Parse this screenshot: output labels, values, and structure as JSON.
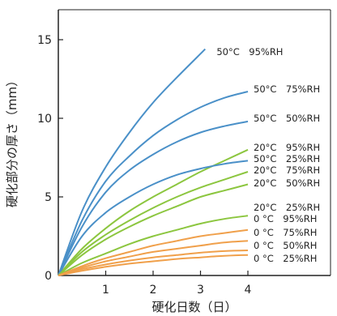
{
  "chart_data": {
    "type": "line",
    "xlabel": "硬化日数（日）",
    "ylabel": "硬化部分の厚さ（mm）",
    "xlim": [
      0,
      5.15
    ],
    "ylim": [
      0,
      17
    ],
    "x_ticks": [
      1,
      2,
      3,
      4
    ],
    "y_ticks": [
      0,
      5,
      10,
      15
    ],
    "x_tick_labels": [
      "1",
      "2",
      "3",
      "4"
    ],
    "y_tick_labels": [
      "0",
      "5",
      "10",
      "15"
    ],
    "grid": false,
    "colors": {
      "blue": "#4a90c8",
      "green": "#8cc63f",
      "orange": "#f0a04b"
    },
    "series": [
      {
        "name": "50°C　95%RH",
        "color": "blue",
        "x": [
          0,
          0.5,
          1,
          1.5,
          2,
          2.5,
          3.1
        ],
        "y": [
          0,
          4.1,
          6.9,
          9.1,
          11.0,
          12.6,
          14.4
        ]
      },
      {
        "name": "50°C　75%RH",
        "color": "blue",
        "x": [
          0,
          0.5,
          1,
          1.5,
          2,
          2.5,
          3,
          3.5,
          4
        ],
        "y": [
          0,
          3.5,
          6.0,
          7.6,
          8.9,
          9.9,
          10.7,
          11.3,
          11.7
        ]
      },
      {
        "name": "50°C　50%RH",
        "color": "blue",
        "x": [
          0,
          0.5,
          1,
          1.5,
          2,
          2.5,
          3,
          3.5,
          4
        ],
        "y": [
          0,
          3.1,
          5.3,
          6.7,
          7.7,
          8.5,
          9.1,
          9.5,
          9.8
        ]
      },
      {
        "name": "20°C　95%RH",
        "color": "green",
        "x": [
          0,
          0.5,
          1,
          1.5,
          2,
          2.5,
          3,
          3.5,
          4
        ],
        "y": [
          0,
          1.7,
          3.0,
          4.1,
          5.0,
          5.8,
          6.6,
          7.3,
          8.0
        ]
      },
      {
        "name": "50°C　25%RH",
        "color": "blue",
        "x": [
          0,
          0.5,
          1,
          1.5,
          2,
          2.5,
          3,
          3.5,
          4
        ],
        "y": [
          0,
          2.5,
          4.0,
          5.0,
          5.8,
          6.4,
          6.8,
          7.1,
          7.3
        ]
      },
      {
        "name": "20°C　75%RH",
        "color": "green",
        "x": [
          0,
          0.5,
          1,
          1.5,
          2,
          2.5,
          3,
          3.5,
          4
        ],
        "y": [
          0,
          1.5,
          2.6,
          3.5,
          4.3,
          5.0,
          5.6,
          6.1,
          6.6
        ]
      },
      {
        "name": "20°C　50%RH",
        "color": "green",
        "x": [
          0,
          0.5,
          1,
          1.5,
          2,
          2.5,
          3,
          3.5,
          4
        ],
        "y": [
          0,
          1.3,
          2.3,
          3.1,
          3.8,
          4.4,
          5.0,
          5.4,
          5.8
        ]
      },
      {
        "name": "20°C　25%RH",
        "color": "green",
        "x": [
          0,
          0.5,
          1,
          1.5,
          2,
          2.5,
          3,
          3.5,
          4
        ],
        "y": [
          0,
          0.8,
          1.4,
          2.0,
          2.5,
          2.9,
          3.3,
          3.6,
          3.8
        ]
      },
      {
        "name": "0 °C　95%RH",
        "color": "orange",
        "x": [
          0,
          0.5,
          1,
          1.5,
          2,
          2.5,
          3,
          3.5,
          4
        ],
        "y": [
          0,
          0.6,
          1.1,
          1.5,
          1.9,
          2.2,
          2.5,
          2.7,
          2.9
        ]
      },
      {
        "name": "0 °C　75%RH",
        "color": "orange",
        "x": [
          0,
          0.5,
          1,
          1.5,
          2,
          2.5,
          3,
          3.5,
          4
        ],
        "y": [
          0,
          0.5,
          0.9,
          1.2,
          1.5,
          1.7,
          1.9,
          2.1,
          2.2
        ]
      },
      {
        "name": "0 °C　50%RH",
        "color": "orange",
        "x": [
          0,
          0.5,
          1,
          1.5,
          2,
          2.5,
          3,
          3.5,
          4
        ],
        "y": [
          0,
          0.4,
          0.7,
          0.95,
          1.15,
          1.3,
          1.45,
          1.55,
          1.6
        ]
      },
      {
        "name": "0 °C　25%RH",
        "color": "orange",
        "x": [
          0,
          0.5,
          1,
          1.5,
          2,
          2.5,
          3,
          3.5,
          4
        ],
        "y": [
          0,
          0.3,
          0.55,
          0.75,
          0.9,
          1.05,
          1.15,
          1.25,
          1.3
        ]
      }
    ]
  }
}
